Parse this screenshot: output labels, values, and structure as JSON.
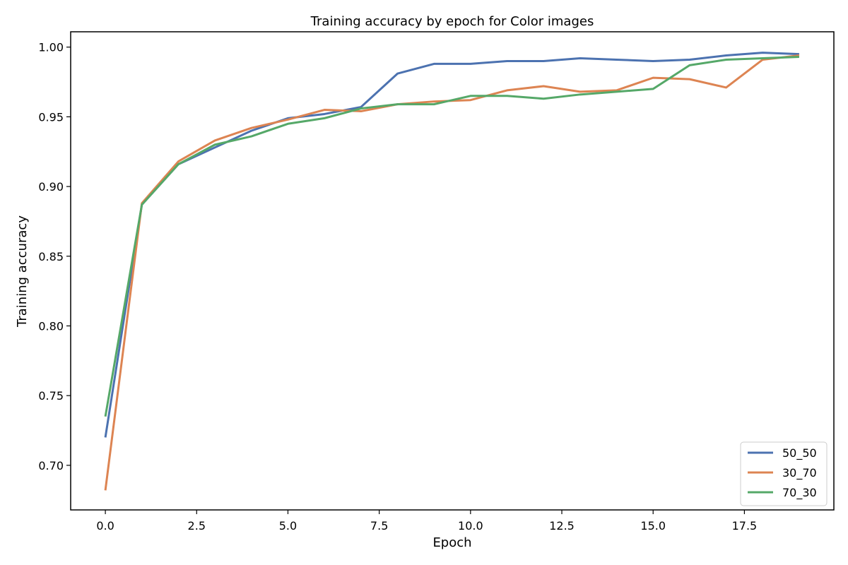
{
  "chart_data": {
    "type": "line",
    "title": "Training accuracy by epoch for Color images",
    "xlabel": "Epoch",
    "ylabel": "Training accuracy",
    "xlim": [
      -0.95,
      19.95
    ],
    "ylim": [
      0.668,
      1.011
    ],
    "xticks": [
      0.0,
      2.5,
      5.0,
      7.5,
      10.0,
      12.5,
      15.0,
      17.5
    ],
    "xtick_labels": [
      "0.0",
      "2.5",
      "5.0",
      "7.5",
      "10.0",
      "12.5",
      "15.0",
      "17.5"
    ],
    "yticks": [
      0.7,
      0.75,
      0.8,
      0.85,
      0.9,
      0.95,
      1.0
    ],
    "ytick_labels": [
      "0.70",
      "0.75",
      "0.80",
      "0.85",
      "0.90",
      "0.95",
      "1.00"
    ],
    "grid": false,
    "legend_position": "lower-right",
    "x": [
      0,
      1,
      2,
      3,
      4,
      5,
      6,
      7,
      8,
      9,
      10,
      11,
      12,
      13,
      14,
      15,
      16,
      17,
      18,
      19
    ],
    "series": [
      {
        "name": "50_50",
        "color": "#4c72b0",
        "values": [
          0.72,
          0.887,
          0.916,
          0.928,
          0.94,
          0.949,
          0.952,
          0.957,
          0.981,
          0.988,
          0.988,
          0.99,
          0.99,
          0.992,
          0.991,
          0.99,
          0.991,
          0.994,
          0.996,
          0.995
        ]
      },
      {
        "name": "30_70",
        "color": "#dd8452",
        "values": [
          0.682,
          0.888,
          0.918,
          0.933,
          0.942,
          0.948,
          0.955,
          0.954,
          0.959,
          0.961,
          0.962,
          0.969,
          0.972,
          0.968,
          0.969,
          0.978,
          0.977,
          0.971,
          0.991,
          0.994
        ]
      },
      {
        "name": "70_30",
        "color": "#55a868",
        "values": [
          0.735,
          0.887,
          0.916,
          0.93,
          0.936,
          0.945,
          0.949,
          0.956,
          0.959,
          0.959,
          0.965,
          0.965,
          0.963,
          0.966,
          0.968,
          0.97,
          0.987,
          0.991,
          0.992,
          0.993
        ]
      }
    ]
  }
}
